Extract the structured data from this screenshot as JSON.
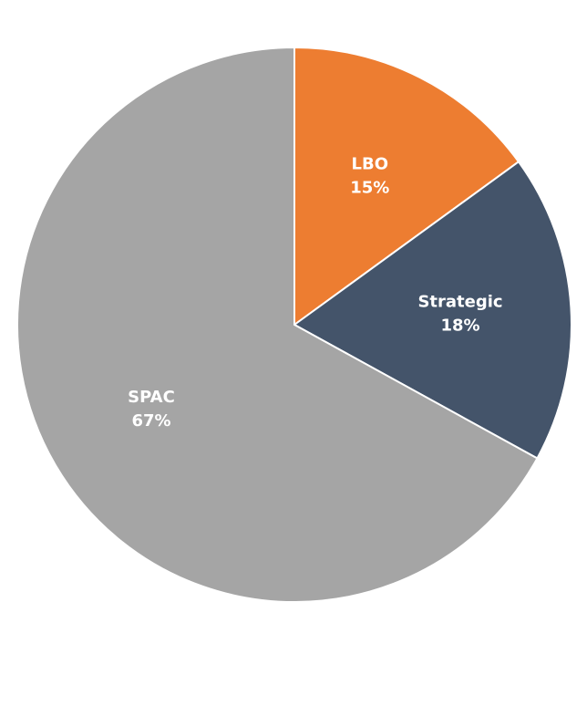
{
  "chart_data": {
    "type": "pie",
    "categories": [
      "LBO",
      "Strategic",
      "SPAC"
    ],
    "values": [
      15,
      18,
      67
    ],
    "value_labels": [
      "15%",
      "18%",
      "67%"
    ],
    "colors": [
      "#ed7d31",
      "#44546a",
      "#a5a5a5"
    ]
  }
}
